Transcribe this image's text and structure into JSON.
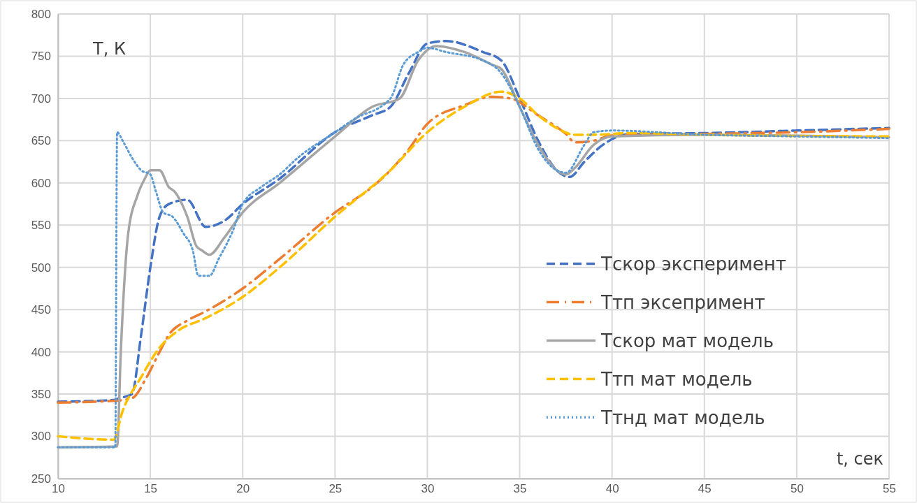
{
  "chart_data": {
    "type": "line",
    "xlabel": "t, сек",
    "ylabel": "T, К",
    "xlim": [
      10,
      55
    ],
    "xticks": [
      10,
      15,
      20,
      25,
      30,
      35,
      40,
      45,
      50,
      55
    ],
    "ylim": [
      250,
      800
    ],
    "yticks": [
      250,
      300,
      350,
      400,
      450,
      500,
      550,
      600,
      650,
      700,
      750,
      800
    ],
    "grid": true,
    "legend": "bottom right",
    "marker": "none",
    "series": [
      {
        "name": "Тскор эксперимент",
        "color": "#4472c4",
        "line_style": "dashed",
        "x": [
          10,
          13,
          13.3,
          14,
          14.5,
          15,
          15.5,
          16,
          17,
          18,
          19,
          20,
          22,
          25,
          27,
          28,
          29,
          30,
          31,
          33,
          34,
          35,
          36,
          37,
          37.7,
          38.5,
          39.5,
          41,
          45,
          50,
          55
        ],
        "values": [
          341,
          343,
          345,
          350,
          420,
          500,
          560,
          575,
          580,
          548,
          555,
          575,
          605,
          660,
          680,
          690,
          730,
          765,
          768,
          755,
          745,
          700,
          650,
          615,
          607,
          625,
          645,
          658,
          659,
          662,
          665
        ]
      },
      {
        "name": "Ттп эксепримент",
        "color": "#ed7d31",
        "line_style": "dashdot",
        "x": [
          10,
          13,
          14,
          14.8,
          15.5,
          16,
          17,
          18,
          20,
          22,
          25,
          27,
          28,
          29,
          30,
          32,
          33.5,
          34.5,
          36,
          37.5,
          38,
          39,
          40,
          45,
          50,
          55
        ],
        "values": [
          340,
          342,
          345,
          370,
          400,
          420,
          437,
          448,
          475,
          510,
          565,
          595,
          615,
          640,
          670,
          692,
          702,
          700,
          680,
          658,
          648,
          650,
          656,
          658,
          660,
          664
        ]
      },
      {
        "name": "Тскор мат модель",
        "color": "#a5a5a5",
        "line_style": "solid",
        "x": [
          10,
          13.2,
          13.4,
          13.8,
          14.3,
          14.7,
          15,
          15.5,
          16,
          16.3,
          17,
          17.5,
          17.8,
          18.2,
          19,
          20,
          22,
          25,
          27,
          28.5,
          29.5,
          30.5,
          32,
          33.5,
          34,
          35,
          36,
          37,
          37.5,
          38,
          39,
          40,
          45,
          55
        ],
        "values": [
          287,
          288,
          400,
          540,
          585,
          605,
          615,
          615,
          595,
          590,
          560,
          525,
          520,
          515,
          535,
          565,
          600,
          655,
          690,
          700,
          745,
          762,
          755,
          740,
          735,
          690,
          645,
          615,
          610,
          618,
          645,
          655,
          657,
          654
        ]
      },
      {
        "name": "Ттп мат модель",
        "color": "#ffc000",
        "line_style": "dashed",
        "x": [
          10,
          13,
          13.5,
          14.5,
          15.5,
          16.5,
          18,
          20,
          22,
          25,
          28,
          30,
          32,
          34,
          35,
          36,
          37,
          38,
          39,
          41,
          45,
          55
        ],
        "values": [
          300,
          296,
          330,
          370,
          405,
          425,
          440,
          465,
          500,
          560,
          615,
          660,
          690,
          708,
          700,
          680,
          665,
          657,
          657,
          659,
          657,
          655
        ]
      },
      {
        "name": "Ттнд мат модель",
        "color": "#5b9bd5",
        "line_style": "dotted",
        "x": [
          10,
          13.1,
          13.2,
          13.5,
          14,
          14.5,
          15,
          15.3,
          15.7,
          16.2,
          16.8,
          17.3,
          17.6,
          18.2,
          18.7,
          19.5,
          20,
          21,
          22,
          23,
          25,
          26,
          28,
          28.7,
          29.5,
          30,
          31,
          33,
          34,
          35,
          36,
          37,
          37.5,
          38.5,
          39,
          40,
          45,
          50,
          55
        ],
        "values": [
          287,
          287,
          660,
          650,
          630,
          615,
          610,
          590,
          565,
          560,
          540,
          520,
          490,
          490,
          510,
          545,
          575,
          595,
          610,
          630,
          660,
          675,
          700,
          740,
          755,
          760,
          755,
          745,
          730,
          690,
          640,
          615,
          612,
          645,
          660,
          662,
          657,
          655,
          653
        ]
      }
    ]
  }
}
